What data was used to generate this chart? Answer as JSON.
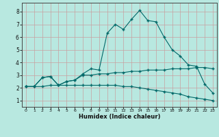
{
  "xlabel": "Humidex (Indice chaleur)",
  "ylabel": "",
  "bg_color": "#b8e8e0",
  "grid_color": "#c8a0a0",
  "line_color": "#006868",
  "xlim": [
    -0.5,
    23.5
  ],
  "ylim": [
    0.5,
    8.7
  ],
  "xticks": [
    0,
    1,
    2,
    3,
    4,
    5,
    6,
    7,
    8,
    9,
    10,
    11,
    12,
    13,
    14,
    15,
    16,
    17,
    18,
    19,
    20,
    21,
    22,
    23
  ],
  "yticks": [
    1,
    2,
    3,
    4,
    5,
    6,
    7,
    8
  ],
  "series1_x": [
    0,
    1,
    2,
    3,
    4,
    5,
    6,
    7,
    8,
    9,
    10,
    11,
    12,
    13,
    14,
    15,
    16,
    17,
    18,
    19,
    20,
    21,
    22,
    23
  ],
  "series1_y": [
    2.1,
    2.1,
    2.8,
    2.9,
    2.2,
    2.5,
    2.6,
    3.1,
    3.5,
    3.4,
    6.3,
    7.0,
    6.6,
    7.4,
    8.1,
    7.3,
    7.2,
    6.0,
    5.0,
    4.5,
    3.8,
    3.7,
    2.3,
    1.6
  ],
  "series2_x": [
    0,
    1,
    2,
    3,
    4,
    5,
    6,
    7,
    8,
    9,
    10,
    11,
    12,
    13,
    14,
    15,
    16,
    17,
    18,
    19,
    20,
    21,
    22,
    23
  ],
  "series2_y": [
    2.1,
    2.1,
    2.8,
    2.9,
    2.2,
    2.5,
    2.6,
    3.0,
    3.0,
    3.1,
    3.1,
    3.2,
    3.2,
    3.3,
    3.3,
    3.4,
    3.4,
    3.4,
    3.5,
    3.5,
    3.5,
    3.6,
    3.6,
    3.5
  ],
  "series3_x": [
    0,
    1,
    2,
    3,
    4,
    5,
    6,
    7,
    8,
    9,
    10,
    11,
    12,
    13,
    14,
    15,
    16,
    17,
    18,
    19,
    20,
    21,
    22,
    23
  ],
  "series3_y": [
    2.1,
    2.1,
    2.1,
    2.2,
    2.2,
    2.2,
    2.2,
    2.2,
    2.2,
    2.2,
    2.2,
    2.2,
    2.1,
    2.1,
    2.0,
    1.9,
    1.8,
    1.7,
    1.6,
    1.5,
    1.3,
    1.2,
    1.1,
    1.0
  ]
}
